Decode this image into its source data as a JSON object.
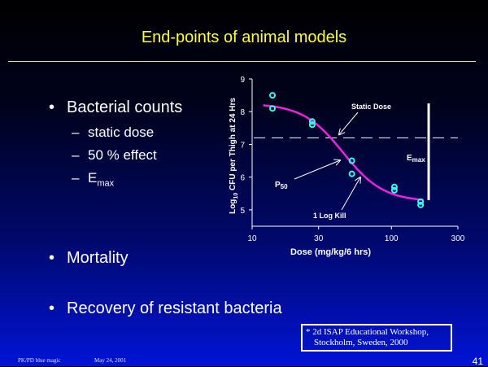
{
  "slide": {
    "title": "End-points of animal models",
    "bullets": [
      {
        "text": "Bacterial counts"
      },
      {
        "text": "Mortality"
      },
      {
        "text": "Recovery of resistant bacteria"
      }
    ],
    "subbullets": [
      {
        "text": "static dose"
      },
      {
        "text": "50 % effect"
      },
      {
        "text": "E",
        "sub": "max"
      }
    ],
    "footnote": {
      "line1": "* 2d ISAP Educational Workshop,",
      "line2": "Stockholm, Sweden, 2000"
    },
    "footer_left": "PK/PD blue magic",
    "footer_date": "May 24, 2001",
    "page_number": "41"
  },
  "chart_data": {
    "type": "scatter",
    "xlabel": "Dose (mg/kg/6 hrs)",
    "ylabel_prefix": "Log",
    "ylabel_sub": "10",
    "ylabel_rest": " CFU per Thigh at 24 Hrs",
    "x_scale": "log",
    "xlim": [
      10,
      300
    ],
    "ylim": [
      4.5,
      9
    ],
    "x_ticks": [
      10,
      30,
      100,
      300
    ],
    "y_ticks": [
      5,
      6,
      7,
      8,
      9
    ],
    "points": [
      {
        "x": 14,
        "y": 8.5
      },
      {
        "x": 14,
        "y": 8.1
      },
      {
        "x": 27,
        "y": 7.7
      },
      {
        "x": 27,
        "y": 7.6
      },
      {
        "x": 52,
        "y": 6.5
      },
      {
        "x": 52,
        "y": 6.1
      },
      {
        "x": 105,
        "y": 5.7
      },
      {
        "x": 105,
        "y": 5.6
      },
      {
        "x": 162,
        "y": 5.25
      },
      {
        "x": 162,
        "y": 5.15
      }
    ],
    "fit_curve": {
      "emax": 3.0,
      "e0": 8.25,
      "ed50": 45,
      "hill": 3.0,
      "x_start": 12,
      "x_end": 170
    },
    "static_dose_y": 7.2,
    "emax_bar": {
      "x": 185,
      "y_top": 8.25,
      "y_bottom": 5.3
    },
    "annotations": {
      "static_dose": "Static Dose",
      "p_label": "P",
      "p_sub": "50",
      "emax_label": "E",
      "emax_sub": "max",
      "log_kill": "1 Log Kill"
    },
    "point_color": "#33ffee",
    "curve_color": "#ee22dd"
  }
}
